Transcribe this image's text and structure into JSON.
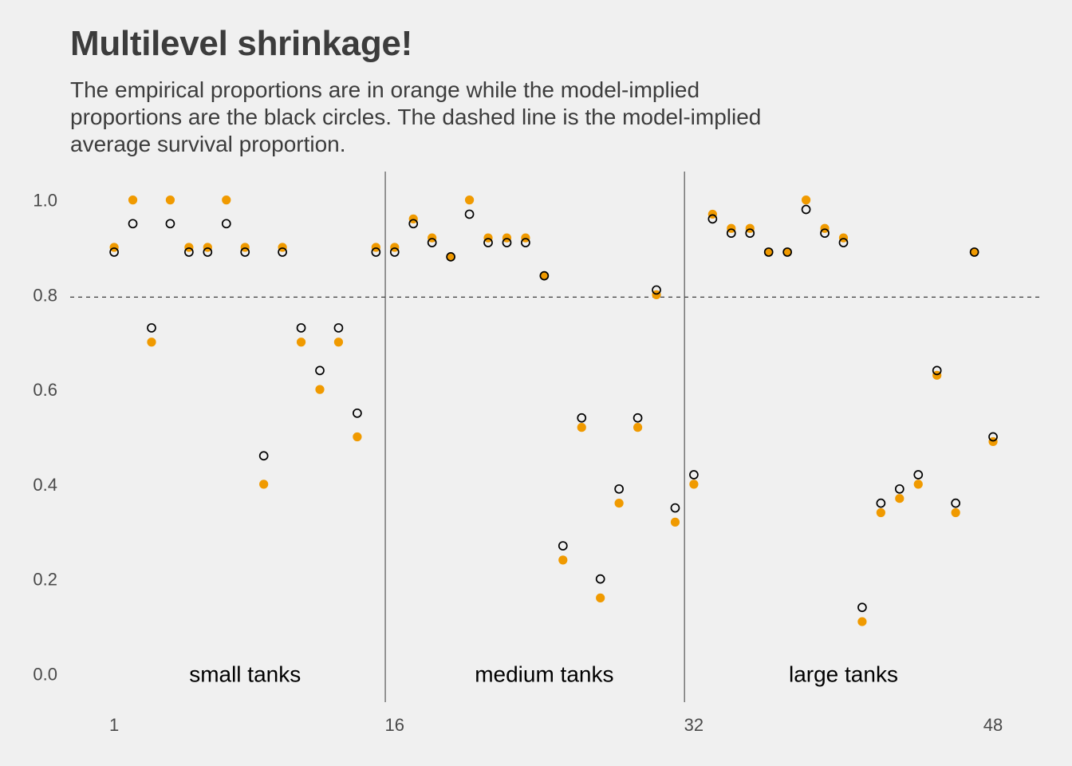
{
  "chart_data": {
    "type": "scatter",
    "title": "Multilevel shrinkage!",
    "subtitle": "The empirical proportions are in orange while the model-implied proportions are the black circles. The dashed line is the model-implied average survival proportion.",
    "xlabel": "",
    "ylabel": "",
    "xlim": [
      -1.35,
      50.6
    ],
    "ylim": [
      -0.06,
      1.06
    ],
    "x_ticks": [
      1,
      16,
      32,
      48
    ],
    "y_ticks": [
      "0.0",
      "0.2",
      "0.4",
      "0.6",
      "0.8",
      "1.0"
    ],
    "grid": false,
    "average_line": 0.795,
    "dividers": [
      15.5,
      31.5
    ],
    "groups": [
      {
        "label": "small tanks",
        "x": 8.0
      },
      {
        "label": "medium tanks",
        "x": 24.0
      },
      {
        "label": "large tanks",
        "x": 40.0
      }
    ],
    "colors": {
      "empirical": "#f09a00",
      "model": "#000000",
      "dashed_line": "#3c3c3c",
      "divider": "#555555"
    },
    "series": [
      {
        "marker": "filled-orange",
        "x": [
          1,
          2,
          3,
          4,
          5,
          6,
          7,
          8,
          9,
          10,
          11,
          12,
          13,
          14,
          15,
          16,
          17,
          18,
          19,
          20,
          21,
          22,
          23,
          24,
          25,
          26,
          27,
          28,
          29,
          30,
          31,
          32,
          33,
          34,
          35,
          36,
          37,
          38,
          39,
          40,
          41,
          42,
          43,
          44,
          45,
          46,
          47,
          48
        ],
        "values": [
          0.9,
          1.0,
          0.7,
          1.0,
          0.9,
          0.9,
          1.0,
          0.9,
          0.4,
          0.9,
          0.7,
          0.6,
          0.7,
          0.5,
          0.9,
          0.9,
          0.96,
          0.92,
          0.88,
          1.0,
          0.92,
          0.92,
          0.92,
          0.84,
          0.24,
          0.52,
          0.16,
          0.36,
          0.52,
          0.8,
          0.32,
          0.4,
          0.97,
          0.94,
          0.94,
          0.89,
          0.89,
          1.0,
          0.94,
          0.92,
          0.11,
          0.34,
          0.37,
          0.4,
          0.63,
          0.34,
          0.89,
          0.49
        ]
      },
      {
        "marker": "open-black",
        "x": [
          1,
          2,
          3,
          4,
          5,
          6,
          7,
          8,
          9,
          10,
          11,
          12,
          13,
          14,
          15,
          16,
          17,
          18,
          19,
          20,
          21,
          22,
          23,
          24,
          25,
          26,
          27,
          28,
          29,
          30,
          31,
          32,
          33,
          34,
          35,
          36,
          37,
          38,
          39,
          40,
          41,
          42,
          43,
          44,
          45,
          46,
          47,
          48
        ],
        "values": [
          0.89,
          0.95,
          0.73,
          0.95,
          0.89,
          0.89,
          0.95,
          0.89,
          0.46,
          0.89,
          0.73,
          0.64,
          0.73,
          0.55,
          0.89,
          0.89,
          0.95,
          0.91,
          0.88,
          0.97,
          0.91,
          0.91,
          0.91,
          0.84,
          0.27,
          0.54,
          0.2,
          0.39,
          0.54,
          0.81,
          0.35,
          0.42,
          0.96,
          0.93,
          0.93,
          0.89,
          0.89,
          0.98,
          0.93,
          0.91,
          0.14,
          0.36,
          0.39,
          0.42,
          0.64,
          0.36,
          0.89,
          0.5
        ]
      }
    ]
  }
}
